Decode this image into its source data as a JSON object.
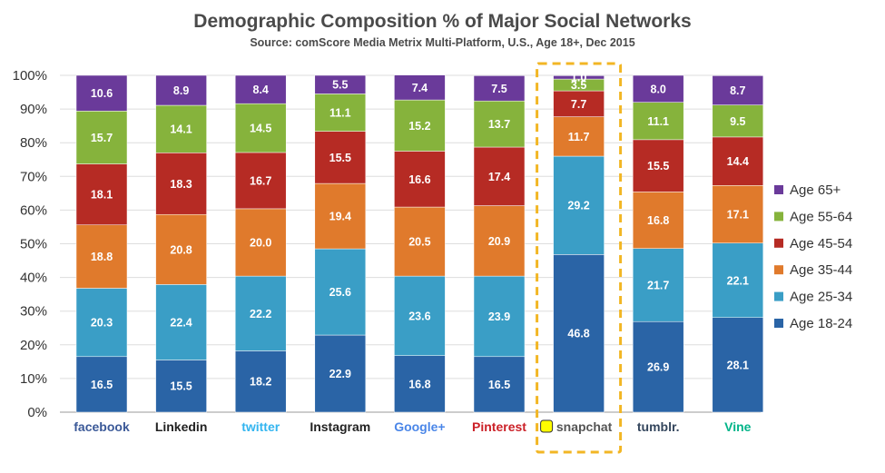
{
  "chart_data": {
    "type": "bar",
    "stacked": true,
    "title": "Demographic Composition % of Major Social Networks",
    "subtitle": "Source: comScore Media Metrix Multi-Platform, U.S., Age 18+, Dec 2015",
    "ylabel": "",
    "xlabel": "",
    "ylim": [
      0,
      100
    ],
    "y_ticks": [
      "0%",
      "10%",
      "20%",
      "30%",
      "40%",
      "50%",
      "60%",
      "70%",
      "80%",
      "90%",
      "100%"
    ],
    "categories": [
      "facebook",
      "Linkedin",
      "twitter",
      "Instagram",
      "Google+",
      "Pinterest",
      "snapchat",
      "tumblr.",
      "Vine"
    ],
    "series": [
      {
        "name": "Age 18-24",
        "color": "#2a64a6",
        "values": [
          16.5,
          15.5,
          18.2,
          22.9,
          16.8,
          16.5,
          46.8,
          26.9,
          28.1
        ]
      },
      {
        "name": "Age 25-34",
        "color": "#3a9ec6",
        "values": [
          20.3,
          22.4,
          22.2,
          25.6,
          23.6,
          23.9,
          29.2,
          21.7,
          22.1
        ]
      },
      {
        "name": "Age 35-44",
        "color": "#e07a2c",
        "values": [
          18.8,
          20.8,
          20.0,
          19.4,
          20.5,
          20.9,
          11.7,
          16.8,
          17.1
        ]
      },
      {
        "name": "Age 45-54",
        "color": "#b62b24",
        "values": [
          18.1,
          18.3,
          16.7,
          15.5,
          16.6,
          17.4,
          7.7,
          15.5,
          14.4
        ]
      },
      {
        "name": "Age 55-64",
        "color": "#86b33c",
        "values": [
          15.7,
          14.1,
          14.5,
          11.1,
          15.2,
          13.7,
          3.5,
          11.1,
          9.5
        ]
      },
      {
        "name": "Age 65+",
        "color": "#6a3a9a",
        "values": [
          10.6,
          8.9,
          8.4,
          5.5,
          7.4,
          7.5,
          1.0,
          8.0,
          8.7
        ]
      }
    ],
    "legend_position": "right",
    "highlight": "snapchat",
    "highlight_color": "#f2b624",
    "platform_colors": {
      "facebook": "#3b5998",
      "Linkedin": "#222222",
      "twitter": "#33b5f0",
      "Instagram": "#222222",
      "Google+": "#4a86e8",
      "Pinterest": "#cb2027",
      "snapchat": "#555555",
      "tumblr.": "#34465d",
      "Vine": "#00b489"
    }
  }
}
